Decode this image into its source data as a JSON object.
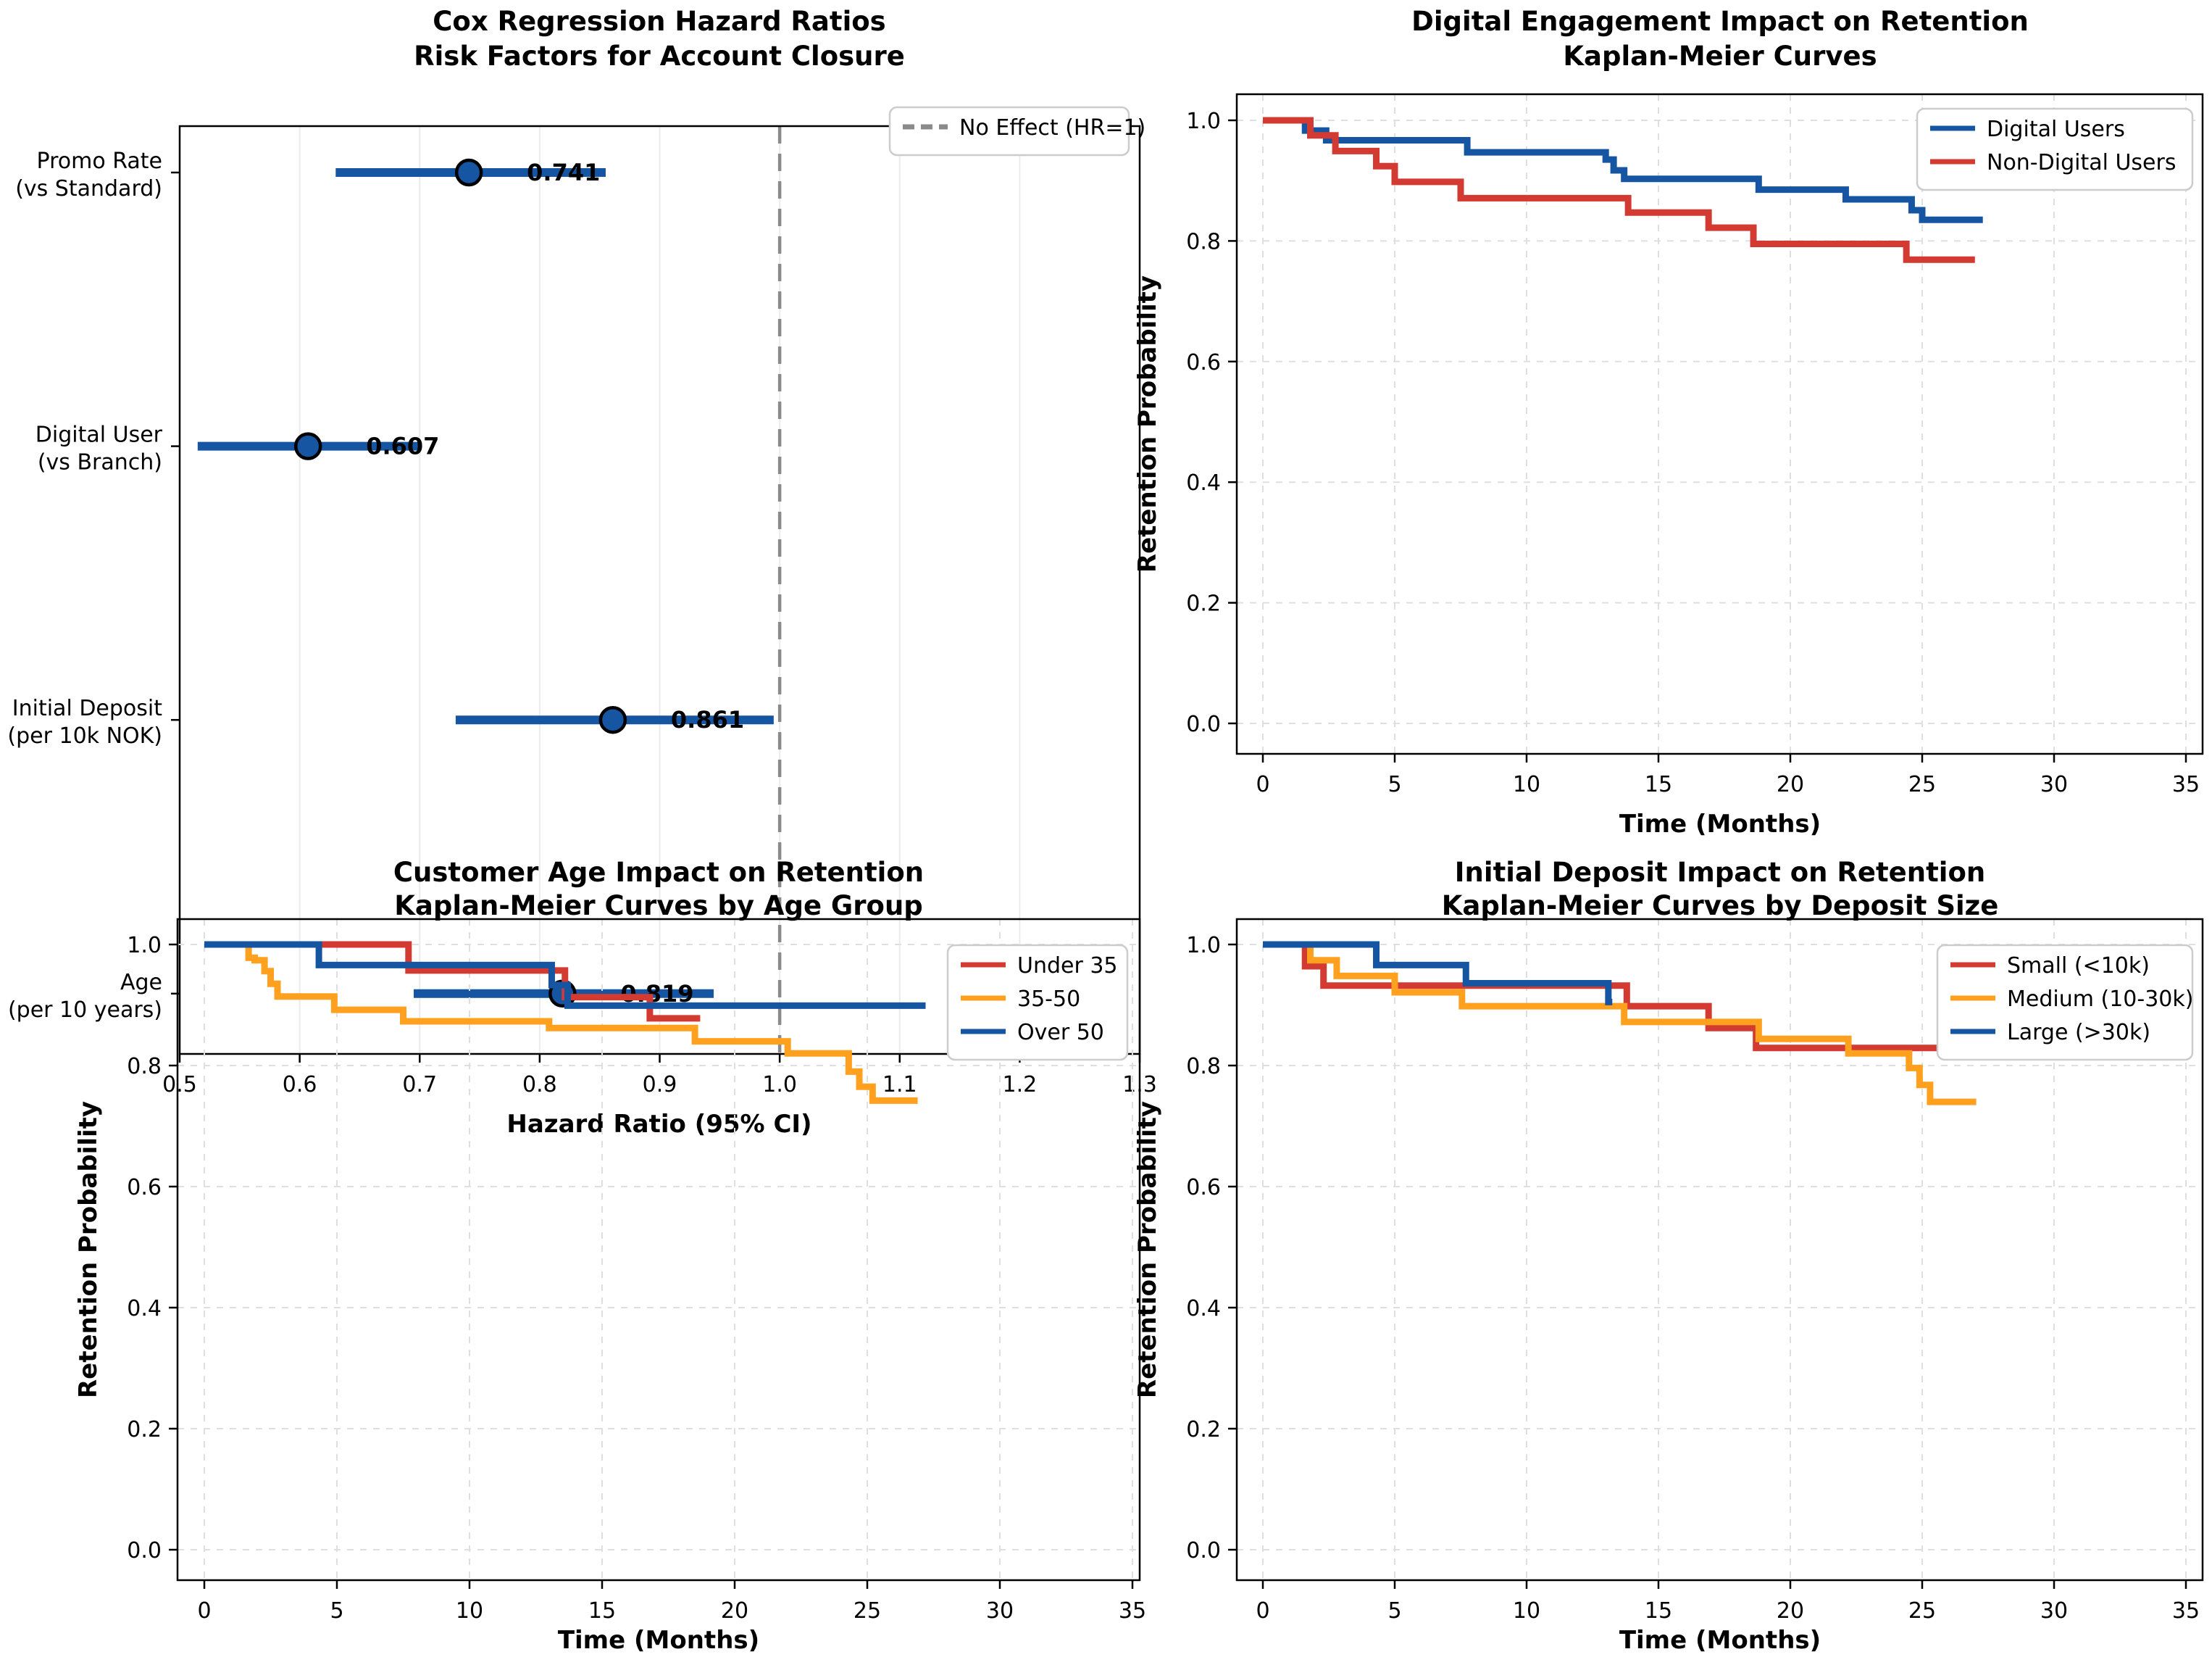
{
  "figure": {
    "description": "2x2 grid of survival-analysis charts for bank account retention",
    "background": "#ffffff"
  },
  "colors": {
    "blue": "#1655A2",
    "red": "#D23A32",
    "orange": "#FFA01E",
    "reference": "#8A8A8A",
    "grid": "#DFDFDF",
    "forest_grid": "#EBEBEB",
    "spine": "#000000",
    "text": "#000000",
    "legend_border": "#CCCCCC",
    "legend_bg": "#FFFFFF"
  },
  "chart_data": [
    {
      "id": "cox-forest",
      "type": "forest",
      "title": [
        "Cox Regression Hazard Ratios",
        "Risk Factors for Account Closure"
      ],
      "xlabel": "Hazard Ratio (95% CI)",
      "xlim": [
        0.5,
        1.3
      ],
      "xticks": [
        0.5,
        0.6,
        0.7,
        0.8,
        0.9,
        1.0,
        1.1,
        1.2,
        1.3
      ],
      "reference_line": {
        "x": 1.0,
        "label": "No Effect (HR=1)"
      },
      "rows": [
        {
          "label": [
            "Promo Rate",
            "(vs Standard)"
          ],
          "hr": 0.741,
          "ci": [
            0.63,
            0.855
          ],
          "value_label": "0.741"
        },
        {
          "label": [
            "Digital User",
            "(vs Branch)"
          ],
          "hr": 0.607,
          "ci": [
            0.515,
            0.7
          ],
          "value_label": "0.607"
        },
        {
          "label": [
            "Initial Deposit",
            "(per 10k NOK)"
          ],
          "hr": 0.861,
          "ci": [
            0.73,
            0.995
          ],
          "value_label": "0.861"
        },
        {
          "label": [
            "Age",
            "(per 10 years)"
          ],
          "hr": 0.819,
          "ci": [
            0.695,
            0.945
          ],
          "value_label": "0.819"
        }
      ]
    },
    {
      "id": "digital-km",
      "type": "km",
      "title": [
        "Digital Engagement Impact on Retention",
        "Kaplan-Meier Curves"
      ],
      "xlabel": "Time (Months)",
      "ylabel": "Retention Probability",
      "xlim": [
        -1,
        35.6
      ],
      "ylim": [
        -0.05,
        1.043
      ],
      "xticks": [
        0,
        5,
        10,
        15,
        20,
        25,
        30,
        35
      ],
      "yticks": [
        0.0,
        0.2,
        0.4,
        0.6,
        0.8,
        1.0
      ],
      "series": [
        {
          "name": "Digital Users",
          "color": "blue",
          "steps": [
            [
              0,
              1.0
            ],
            [
              1.6,
              0.983
            ],
            [
              2.4,
              0.967
            ],
            [
              7.75,
              0.947
            ],
            [
              13.0,
              0.935
            ],
            [
              13.3,
              0.917
            ],
            [
              13.7,
              0.903
            ],
            [
              18.8,
              0.885
            ],
            [
              22.1,
              0.869
            ],
            [
              24.6,
              0.851
            ],
            [
              25.0,
              0.835
            ],
            [
              27.3,
              0.835
            ]
          ]
        },
        {
          "name": "Non-Digital Users",
          "color": "red",
          "steps": [
            [
              0,
              1.0
            ],
            [
              1.8,
              0.975
            ],
            [
              2.75,
              0.949
            ],
            [
              4.3,
              0.924
            ],
            [
              5.0,
              0.898
            ],
            [
              7.5,
              0.871
            ],
            [
              13.85,
              0.847
            ],
            [
              16.9,
              0.822
            ],
            [
              18.6,
              0.795
            ],
            [
              24.4,
              0.769
            ],
            [
              27.0,
              0.769
            ]
          ]
        }
      ]
    },
    {
      "id": "age-km",
      "type": "km",
      "title": [
        "Customer Age Impact on Retention",
        "Kaplan-Meier Curves by Age Group"
      ],
      "xlabel": "Time (Months)",
      "ylabel": "Retention Probability",
      "xlim": [
        -1,
        35.3
      ],
      "ylim": [
        -0.05,
        1.042
      ],
      "xticks": [
        0,
        5,
        10,
        15,
        20,
        25,
        30,
        35
      ],
      "yticks": [
        0.0,
        0.2,
        0.4,
        0.6,
        0.8,
        1.0
      ],
      "series": [
        {
          "name": "Under 35",
          "color": "red",
          "steps": [
            [
              0,
              1.0
            ],
            [
              7.7,
              0.957
            ],
            [
              13.6,
              0.913
            ],
            [
              16.8,
              0.878
            ],
            [
              18.7,
              0.878
            ]
          ]
        },
        {
          "name": "35-50",
          "color": "orange",
          "steps": [
            [
              0,
              1.0
            ],
            [
              1.67,
              0.978
            ],
            [
              1.9,
              0.974
            ],
            [
              2.27,
              0.956
            ],
            [
              2.5,
              0.935
            ],
            [
              2.76,
              0.914
            ],
            [
              4.9,
              0.892
            ],
            [
              7.5,
              0.873
            ],
            [
              13.0,
              0.862
            ],
            [
              18.5,
              0.84
            ],
            [
              22.0,
              0.82
            ],
            [
              24.3,
              0.79
            ],
            [
              24.7,
              0.765
            ],
            [
              25.2,
              0.742
            ],
            [
              26.9,
              0.742
            ]
          ]
        },
        {
          "name": "Over 50",
          "color": "blue",
          "steps": [
            [
              0,
              1.0
            ],
            [
              4.32,
              0.966
            ],
            [
              13.1,
              0.933
            ],
            [
              13.7,
              0.899
            ],
            [
              27.2,
              0.899
            ]
          ]
        }
      ]
    },
    {
      "id": "deposit-km",
      "type": "km",
      "title": [
        "Initial Deposit Impact on Retention",
        "Kaplan-Meier Curves by Deposit Size"
      ],
      "xlabel": "Time (Months)",
      "ylabel": "Retention Probability",
      "xlim": [
        -1,
        35.6
      ],
      "ylim": [
        -0.05,
        1.042
      ],
      "xticks": [
        0,
        5,
        10,
        15,
        20,
        25,
        30,
        35
      ],
      "yticks": [
        0.0,
        0.2,
        0.4,
        0.6,
        0.8,
        1.0
      ],
      "series": [
        {
          "name": "Small (<10k)",
          "color": "red",
          "steps": [
            [
              0,
              1.0
            ],
            [
              1.6,
              0.964
            ],
            [
              2.3,
              0.932
            ],
            [
              13.8,
              0.898
            ],
            [
              16.9,
              0.862
            ],
            [
              18.7,
              0.829
            ],
            [
              27.4,
              0.829
            ]
          ]
        },
        {
          "name": "Medium (10-30k)",
          "color": "orange",
          "steps": [
            [
              0,
              1.0
            ],
            [
              1.8,
              0.974
            ],
            [
              2.8,
              0.948
            ],
            [
              5.0,
              0.921
            ],
            [
              7.55,
              0.898
            ],
            [
              13.7,
              0.872
            ],
            [
              18.8,
              0.844
            ],
            [
              22.2,
              0.82
            ],
            [
              24.5,
              0.796
            ],
            [
              24.9,
              0.768
            ],
            [
              25.3,
              0.74
            ],
            [
              27.05,
              0.74
            ]
          ]
        },
        {
          "name": "Large (>30k)",
          "color": "blue",
          "steps": [
            [
              0,
              1.0
            ],
            [
              4.3,
              0.966
            ],
            [
              7.7,
              0.936
            ],
            [
              13.1,
              0.905
            ],
            [
              13.25,
              0.905
            ]
          ]
        }
      ]
    }
  ]
}
